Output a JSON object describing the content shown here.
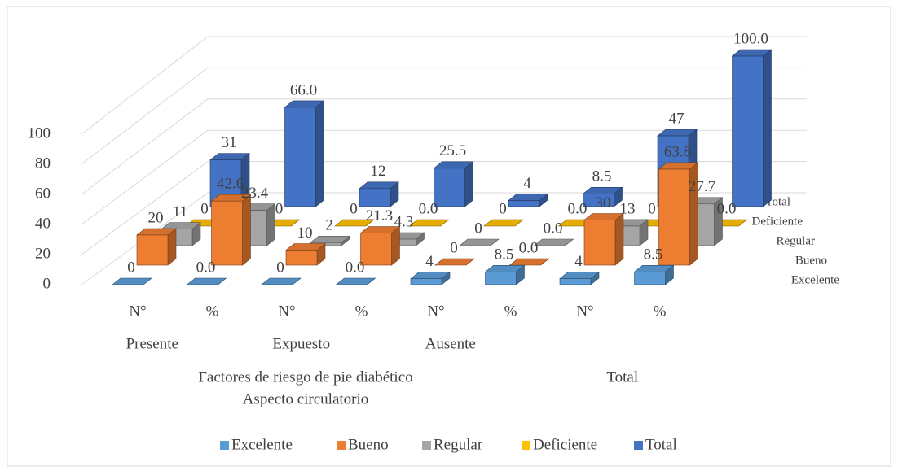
{
  "chart_data": {
    "type": "bar3d",
    "categories": [
      "N°",
      "%",
      "N°",
      "%",
      "N°",
      "%",
      "N°",
      "%"
    ],
    "groups": [
      "Presente",
      "Expuesto",
      "Ausente",
      "Total"
    ],
    "group_title": [
      "Factores de riesgo de pie diabético",
      "Aspecto circulatorio"
    ],
    "series": [
      {
        "name": "Excelente",
        "color": "#5b9bd5",
        "values": [
          0,
          0,
          0,
          0,
          4,
          8.5,
          4,
          8.5
        ],
        "value_labels": [
          "0",
          "0.0",
          "0",
          "0.0",
          "4",
          "8.5",
          "4",
          "8.5"
        ]
      },
      {
        "name": "Bueno",
        "color": "#ed7d31",
        "values": [
          20,
          42.6,
          10,
          21.3,
          0,
          0,
          30,
          63.8
        ],
        "value_labels": [
          "20",
          "42.6",
          "10",
          "21.3",
          "0",
          "0.0",
          "30",
          "63.8"
        ]
      },
      {
        "name": "Regular",
        "color": "#a5a5a5",
        "values": [
          11,
          23.4,
          2,
          4.3,
          0,
          0,
          13,
          27.7
        ],
        "value_labels": [
          "11",
          "23.4",
          "2",
          "4.3",
          "0",
          "0.0",
          "13",
          "27.7"
        ]
      },
      {
        "name": "Deficiente",
        "color": "#ffc000",
        "values": [
          0,
          0,
          0,
          0,
          0,
          0,
          0,
          0
        ],
        "value_labels": [
          "0",
          "0",
          "0",
          "0.0",
          "0",
          "0.0",
          "0",
          "0.0"
        ]
      },
      {
        "name": "Total",
        "color": "#4472c4",
        "values": [
          31,
          66,
          12,
          25.5,
          4,
          8.5,
          47,
          100
        ],
        "value_labels": [
          "31",
          "66.0",
          "12",
          "25.5",
          "4",
          "8.5",
          "47",
          "100.0"
        ]
      }
    ],
    "ylim": [
      0,
      100
    ],
    "yticks": [
      0,
      20,
      40,
      60,
      80,
      100
    ],
    "grid": true,
    "legend": "bottom"
  }
}
